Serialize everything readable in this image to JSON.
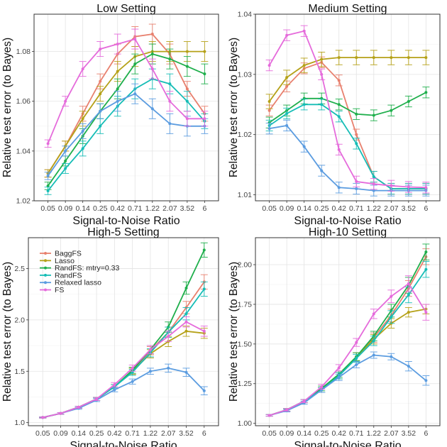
{
  "chart_data": [
    {
      "type": "line",
      "title": "Low Setting",
      "xlabel": "Signal-to-Noise Ratio",
      "ylabel": "Relative test error (to Bayes)",
      "categories": [
        "0.05",
        "0.09",
        "0.14",
        "0.25",
        "0.42",
        "0.71",
        "1.22",
        "2.07",
        "3.52",
        "6"
      ],
      "ylim": [
        1.02,
        1.095
      ],
      "yticks": [
        1.02,
        1.04,
        1.06,
        1.08
      ],
      "ytick_labels": [
        "1.02",
        "1.04",
        "1.06",
        "1.08"
      ],
      "grid": true,
      "series": [
        {
          "name": "BaggFS",
          "values": [
            1.031,
            1.042,
            1.055,
            1.068,
            1.079,
            1.086,
            1.087,
            1.079,
            1.065,
            1.055
          ],
          "err": [
            0.0015,
            0.002,
            0.003,
            0.003,
            0.004,
            0.004,
            0.004,
            0.004,
            0.003,
            0.003
          ]
        },
        {
          "name": "Lasso",
          "values": [
            1.031,
            1.042,
            1.053,
            1.063,
            1.072,
            1.078,
            1.08,
            1.08,
            1.08,
            1.08
          ],
          "err": [
            0.0015,
            0.002,
            0.003,
            0.003,
            0.004,
            0.004,
            0.004,
            0.004,
            0.004,
            0.004
          ]
        },
        {
          "name": "RandFS: mtry=0.33",
          "values": [
            1.026,
            1.036,
            1.046,
            1.056,
            1.065,
            1.075,
            1.079,
            1.077,
            1.074,
            1.071
          ],
          "err": [
            0.0015,
            0.002,
            0.003,
            0.003,
            0.004,
            0.004,
            0.004,
            0.004,
            0.004,
            0.004
          ]
        },
        {
          "name": "RandFS",
          "values": [
            1.024,
            1.033,
            1.041,
            1.05,
            1.058,
            1.065,
            1.069,
            1.067,
            1.06,
            1.052
          ],
          "err": [
            0.0015,
            0.002,
            0.003,
            0.003,
            0.004,
            0.004,
            0.004,
            0.004,
            0.004,
            0.003
          ]
        },
        {
          "name": "Relaxed lasso",
          "values": [
            1.03,
            1.04,
            1.048,
            1.056,
            1.06,
            1.063,
            1.057,
            1.051,
            1.05,
            1.05
          ],
          "err": [
            0.0015,
            0.002,
            0.003,
            0.003,
            0.004,
            0.004,
            0.004,
            0.004,
            0.004,
            0.003
          ]
        },
        {
          "name": "FS",
          "values": [
            1.043,
            1.06,
            1.073,
            1.081,
            1.083,
            1.085,
            1.073,
            1.06,
            1.053,
            1.053
          ],
          "err": [
            0.0015,
            0.002,
            0.003,
            0.003,
            0.004,
            0.004,
            0.004,
            0.004,
            0.003,
            0.003
          ]
        }
      ]
    },
    {
      "type": "line",
      "title": "Medium Setting",
      "xlabel": "Signal-to-Noise Ratio",
      "ylabel": "Relative test error (to Bayes)",
      "categories": [
        "0.05",
        "0.09",
        "0.14",
        "0.25",
        "0.42",
        "0.71",
        "1.22",
        "2.07",
        "3.52",
        "6"
      ],
      "ylim": [
        1.009,
        1.04
      ],
      "yticks": [
        1.01,
        1.02,
        1.03,
        1.04
      ],
      "ytick_labels": [
        "1.01",
        "1.02",
        "1.03",
        "1.04"
      ],
      "grid": true,
      "series": [
        {
          "name": "BaggFS",
          "values": [
            1.024,
            1.028,
            1.031,
            1.032,
            1.029,
            1.02,
            1.013,
            1.011,
            1.011,
            1.011
          ],
          "err": [
            0.0009,
            0.0009,
            0.0009,
            0.0009,
            0.0009,
            0.0009,
            0.0009,
            0.0009,
            0.0009,
            0.0009
          ]
        },
        {
          "name": "Lasso",
          "values": [
            1.0255,
            1.0295,
            1.0315,
            1.0325,
            1.0328,
            1.0328,
            1.0328,
            1.0328,
            1.0328,
            1.0328
          ],
          "err": [
            0.0012,
            0.0012,
            0.0012,
            0.0012,
            0.0012,
            0.0012,
            0.0012,
            0.0012,
            0.0012,
            0.0012
          ]
        },
        {
          "name": "RandFS: mtry=0.33",
          "values": [
            1.022,
            1.024,
            1.026,
            1.026,
            1.025,
            1.0234,
            1.0232,
            1.024,
            1.0255,
            1.027
          ],
          "err": [
            0.0009,
            0.0009,
            0.0009,
            0.0009,
            0.0009,
            0.0009,
            0.0009,
            0.0009,
            0.0009,
            0.0009
          ]
        },
        {
          "name": "RandFS",
          "values": [
            1.0215,
            1.0235,
            1.025,
            1.025,
            1.023,
            1.0185,
            1.013,
            1.011,
            1.011,
            1.011
          ],
          "err": [
            0.0009,
            0.0009,
            0.0009,
            0.0009,
            0.0009,
            0.0009,
            0.0009,
            0.0009,
            0.0009,
            0.0009
          ]
        },
        {
          "name": "Relaxed lasso",
          "values": [
            1.021,
            1.0215,
            1.018,
            1.014,
            1.0112,
            1.011,
            1.0107,
            1.0107,
            1.0107,
            1.0107
          ],
          "err": [
            0.0009,
            0.0009,
            0.0009,
            0.0009,
            0.0009,
            0.0009,
            0.0009,
            0.0009,
            0.0009,
            0.0009
          ]
        },
        {
          "name": "FS",
          "values": [
            1.0315,
            1.0365,
            1.0372,
            1.03,
            1.0175,
            1.0122,
            1.0118,
            1.0115,
            1.0113,
            1.0112
          ],
          "err": [
            0.0009,
            0.0009,
            0.0009,
            0.0009,
            0.0009,
            0.0009,
            0.0009,
            0.0009,
            0.0009,
            0.0009
          ]
        }
      ]
    },
    {
      "type": "line",
      "title": "High-5 Setting",
      "xlabel": "Signal-to-Noise Ratio",
      "ylabel": "Relative test error (to Bayes)",
      "categories": [
        "0.05",
        "0.09",
        "0.14",
        "0.25",
        "0.42",
        "0.71",
        "1.22",
        "2.07",
        "3.52",
        "6"
      ],
      "ylim": [
        0.97,
        2.8
      ],
      "yticks": [
        1.0,
        1.5,
        2.0,
        2.5
      ],
      "ytick_labels": [
        "1.0",
        "1.5",
        "2.0",
        "2.5"
      ],
      "grid": true,
      "legend": "top-left",
      "series": [
        {
          "name": "BaggFS",
          "values": [
            1.05,
            1.09,
            1.15,
            1.23,
            1.35,
            1.5,
            1.7,
            1.88,
            2.12,
            2.37
          ],
          "err": [
            0.005,
            0.008,
            0.01,
            0.015,
            0.02,
            0.03,
            0.04,
            0.05,
            0.06,
            0.07
          ]
        },
        {
          "name": "Lasso",
          "values": [
            1.05,
            1.09,
            1.15,
            1.23,
            1.35,
            1.5,
            1.67,
            1.79,
            1.89,
            1.87
          ],
          "err": [
            0.005,
            0.008,
            0.01,
            0.015,
            0.02,
            0.03,
            0.04,
            0.05,
            0.05,
            0.05
          ]
        },
        {
          "name": "RandFS: mtry=0.33",
          "values": [
            1.05,
            1.09,
            1.15,
            1.23,
            1.35,
            1.51,
            1.71,
            1.93,
            2.31,
            2.68
          ],
          "err": [
            0.005,
            0.008,
            0.01,
            0.015,
            0.02,
            0.03,
            0.04,
            0.05,
            0.06,
            0.07
          ]
        },
        {
          "name": "RandFS",
          "values": [
            1.05,
            1.09,
            1.15,
            1.23,
            1.35,
            1.49,
            1.68,
            1.88,
            2.06,
            2.3
          ],
          "err": [
            0.005,
            0.008,
            0.01,
            0.015,
            0.02,
            0.03,
            0.04,
            0.05,
            0.06,
            0.07
          ]
        },
        {
          "name": "Relaxed lasso",
          "values": [
            1.05,
            1.09,
            1.14,
            1.22,
            1.32,
            1.4,
            1.5,
            1.53,
            1.49,
            1.31
          ],
          "err": [
            0.005,
            0.008,
            0.01,
            0.015,
            0.02,
            0.025,
            0.03,
            0.04,
            0.04,
            0.04
          ]
        },
        {
          "name": "FS",
          "values": [
            1.05,
            1.09,
            1.15,
            1.23,
            1.37,
            1.53,
            1.71,
            1.84,
            1.98,
            1.89
          ],
          "err": [
            0.005,
            0.008,
            0.01,
            0.015,
            0.02,
            0.03,
            0.04,
            0.05,
            0.05,
            0.05
          ]
        }
      ]
    },
    {
      "type": "line",
      "title": "High-10 Setting",
      "xlabel": "Signal-to-Noise Ratio",
      "ylabel": "Relative test error (to Bayes)",
      "categories": [
        "0.05",
        "0.09",
        "0.14",
        "0.25",
        "0.42",
        "0.71",
        "1.22",
        "2.07",
        "3.52",
        "6"
      ],
      "ylim": [
        0.985,
        2.17
      ],
      "yticks": [
        1.0,
        1.25,
        1.5,
        1.75,
        2.0
      ],
      "ytick_labels": [
        "1.00",
        "1.25",
        "1.50",
        "1.75",
        "2.00"
      ],
      "grid": true,
      "series": [
        {
          "name": "BaggFS",
          "values": [
            1.05,
            1.085,
            1.14,
            1.21,
            1.3,
            1.42,
            1.54,
            1.68,
            1.85,
            2.05
          ],
          "err": [
            0.005,
            0.008,
            0.01,
            0.015,
            0.02,
            0.025,
            0.03,
            0.04,
            0.05,
            0.05
          ]
        },
        {
          "name": "Lasso",
          "values": [
            1.05,
            1.085,
            1.14,
            1.21,
            1.3,
            1.42,
            1.53,
            1.63,
            1.7,
            1.72
          ],
          "err": [
            0.005,
            0.008,
            0.01,
            0.015,
            0.02,
            0.025,
            0.03,
            0.03,
            0.03,
            0.03
          ]
        },
        {
          "name": "RandFS: mtry=0.33",
          "values": [
            1.05,
            1.085,
            1.14,
            1.22,
            1.31,
            1.42,
            1.55,
            1.71,
            1.87,
            2.08
          ],
          "err": [
            0.005,
            0.008,
            0.01,
            0.015,
            0.02,
            0.025,
            0.03,
            0.04,
            0.05,
            0.05
          ]
        },
        {
          "name": "RandFS",
          "values": [
            1.05,
            1.085,
            1.14,
            1.21,
            1.3,
            1.41,
            1.52,
            1.67,
            1.81,
            1.97
          ],
          "err": [
            0.005,
            0.008,
            0.01,
            0.015,
            0.02,
            0.025,
            0.03,
            0.04,
            0.05,
            0.05
          ]
        },
        {
          "name": "Relaxed lasso",
          "values": [
            1.05,
            1.08,
            1.13,
            1.21,
            1.29,
            1.37,
            1.43,
            1.42,
            1.36,
            1.27
          ],
          "err": [
            0.005,
            0.008,
            0.01,
            0.015,
            0.02,
            0.02,
            0.02,
            0.02,
            0.03,
            0.03
          ]
        },
        {
          "name": "FS",
          "values": [
            1.05,
            1.085,
            1.14,
            1.23,
            1.35,
            1.51,
            1.69,
            1.8,
            1.88,
            1.7
          ],
          "err": [
            0.005,
            0.008,
            0.01,
            0.015,
            0.02,
            0.025,
            0.03,
            0.04,
            0.05,
            0.05
          ]
        }
      ]
    }
  ],
  "colors": {
    "BaggFS": "#E8806E",
    "Lasso": "#B5A118",
    "RandFS: mtry=0.33": "#1FAF4C",
    "RandFS": "#16BDB6",
    "Relaxed lasso": "#5B9CE0",
    "FS": "#E56BDB"
  }
}
